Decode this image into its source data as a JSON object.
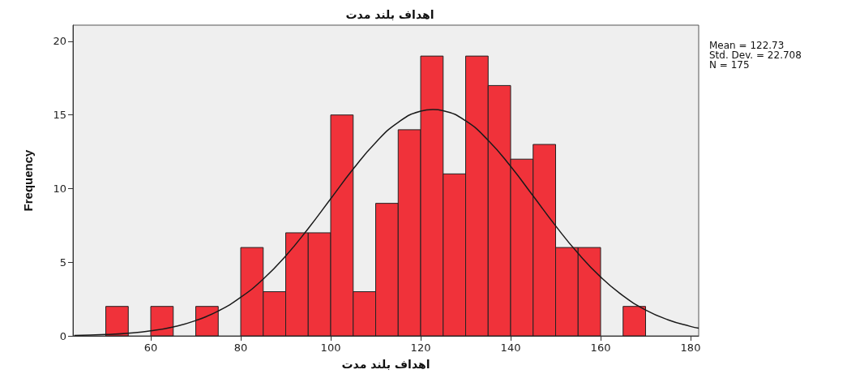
{
  "chart_data": {
    "type": "histogram",
    "title": "اهداف بلند مدت",
    "xlabel": "اهداف بلند مدت",
    "ylabel": "Frequency",
    "annotations": [
      "Mean = 122.73",
      "Std. Dev. = 22.708",
      "N = 175"
    ],
    "xlim": [
      42.7,
      181.8
    ],
    "xticks": [
      60,
      80,
      100,
      120,
      140,
      160,
      180
    ],
    "ylim": [
      0,
      21.1
    ],
    "yticks": [
      0,
      5,
      10,
      15,
      20
    ],
    "grid": false,
    "series": [
      {
        "color": "#f0323a",
        "bins": [
          50,
          55,
          60,
          65,
          70,
          75,
          80,
          85,
          90,
          95,
          100,
          105,
          110,
          115,
          120,
          125,
          130,
          135,
          140,
          145,
          150,
          155,
          160,
          165,
          170
        ],
        "values": [
          2,
          0,
          2,
          0,
          2,
          0,
          6,
          3,
          7,
          7,
          15,
          3,
          9,
          14,
          19,
          11,
          19,
          17,
          12,
          13,
          6,
          6,
          0,
          2
        ]
      },
      {
        "type": "line",
        "color": "#1a1a1a",
        "marker": "none",
        "x": [
          43,
          50,
          55,
          60,
          65,
          70,
          75,
          80,
          85,
          90,
          95,
          100,
          105,
          110,
          115,
          120,
          122.73,
          125,
          130,
          135,
          140,
          145,
          150,
          155,
          160,
          165,
          170,
          175,
          180,
          181.8
        ],
        "values": [
          0.03,
          0.09,
          0.18,
          0.34,
          0.61,
          1.04,
          1.69,
          2.62,
          3.86,
          5.43,
          7.29,
          9.31,
          11.33,
          13.13,
          14.5,
          15.26,
          15.37,
          15.29,
          14.6,
          13.28,
          11.51,
          9.5,
          7.47,
          5.6,
          4.0,
          2.72,
          1.76,
          1.09,
          0.64,
          0.52
        ]
      }
    ]
  }
}
